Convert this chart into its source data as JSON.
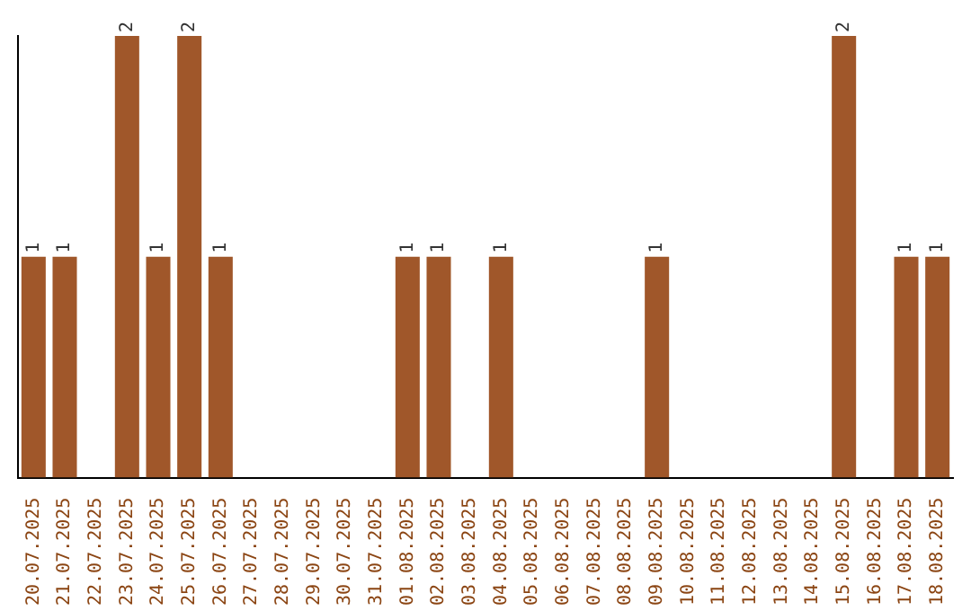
{
  "chart_data": {
    "type": "bar",
    "categories": [
      "20.07.2025",
      "21.07.2025",
      "22.07.2025",
      "23.07.2025",
      "24.07.2025",
      "25.07.2025",
      "26.07.2025",
      "27.07.2025",
      "28.07.2025",
      "29.07.2025",
      "30.07.2025",
      "31.07.2025",
      "01.08.2025",
      "02.08.2025",
      "03.08.2025",
      "04.08.2025",
      "05.08.2025",
      "06.08.2025",
      "07.08.2025",
      "08.08.2025",
      "09.08.2025",
      "10.08.2025",
      "11.08.2025",
      "12.08.2025",
      "13.08.2025",
      "14.08.2025",
      "15.08.2025",
      "16.08.2025",
      "17.08.2025",
      "18.08.2025"
    ],
    "values": [
      1,
      1,
      0,
      2,
      1,
      2,
      1,
      0,
      0,
      0,
      0,
      0,
      1,
      1,
      0,
      1,
      0,
      0,
      0,
      0,
      1,
      0,
      0,
      0,
      0,
      0,
      2,
      0,
      1,
      1
    ],
    "value_labels": [
      "1",
      "1",
      null,
      "2",
      "1",
      "2",
      "1",
      null,
      null,
      null,
      null,
      null,
      "1",
      "1",
      null,
      "1",
      null,
      null,
      null,
      null,
      "1",
      null,
      null,
      null,
      null,
      null,
      "2",
      null,
      "1",
      "1"
    ],
    "color": "#a0572a"
  }
}
